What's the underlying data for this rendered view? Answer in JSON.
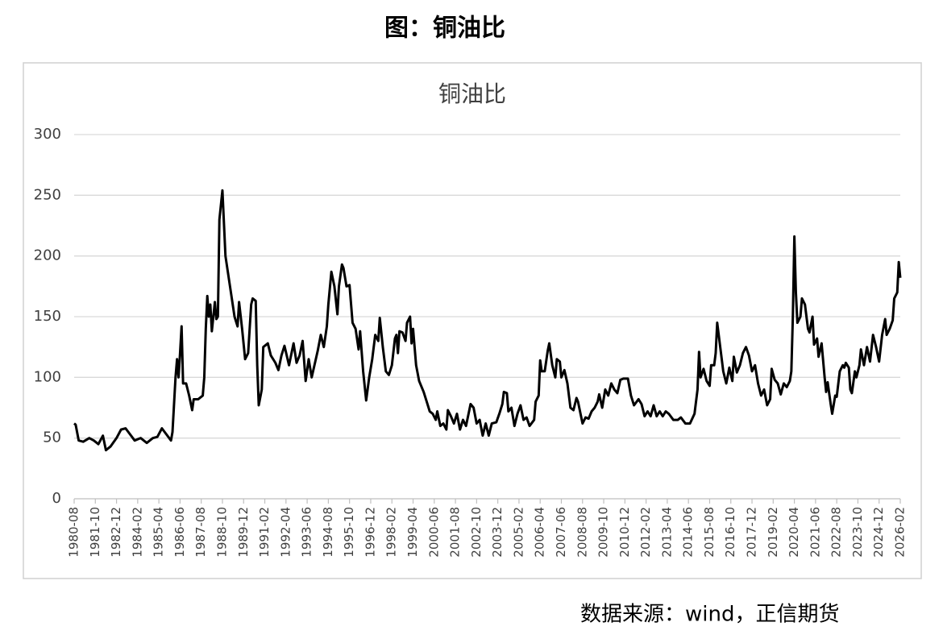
{
  "header": {
    "title": "图：铜油比"
  },
  "chart_data": {
    "type": "line",
    "title": "铜油比",
    "color": "#000000",
    "grid": true,
    "xlim": [
      "1980-08",
      "2026-02"
    ],
    "xticks": [
      "1980-08",
      "1981-10",
      "1982-12",
      "1984-02",
      "1985-04",
      "1986-06",
      "1987-08",
      "1988-10",
      "1989-12",
      "1991-02",
      "1992-04",
      "1993-06",
      "1994-08",
      "1995-10",
      "1996-12",
      "1998-02",
      "1999-04",
      "2000-06",
      "2001-08",
      "2002-10",
      "2003-12",
      "2005-02",
      "2006-04",
      "2007-06",
      "2008-08",
      "2009-10",
      "2010-12",
      "2012-02",
      "2013-04",
      "2014-06",
      "2015-08",
      "2016-10",
      "2017-12",
      "2019-02",
      "2020-04",
      "2021-06",
      "2022-08",
      "2023-10",
      "2024-12",
      "2026-02"
    ],
    "ylim": [
      0,
      300
    ],
    "yticks": [
      0,
      50,
      100,
      150,
      200,
      250,
      300
    ],
    "x": [
      "1980-08",
      "1980-09",
      "1980-11",
      "1981-02",
      "1981-06",
      "1981-09",
      "1981-12",
      "1982-03",
      "1982-05",
      "1982-08",
      "1982-12",
      "1983-03",
      "1983-06",
      "1983-09",
      "1983-12",
      "1984-04",
      "1984-08",
      "1984-12",
      "1985-03",
      "1985-06",
      "1985-09",
      "1985-12",
      "1986-01",
      "1986-03",
      "1986-04",
      "1986-05",
      "1986-06",
      "1986-07",
      "1986-08",
      "1986-10",
      "1986-12",
      "1987-02",
      "1987-03",
      "1987-06",
      "1987-09",
      "1987-10",
      "1987-11",
      "1987-12",
      "1988-01",
      "1988-02",
      "1988-03",
      "1988-05",
      "1988-06",
      "1988-07",
      "1988-08",
      "1988-10",
      "1988-12",
      "1989-03",
      "1989-06",
      "1989-08",
      "1989-09",
      "1989-11",
      "1990-01",
      "1990-03",
      "1990-05",
      "1990-06",
      "1990-08",
      "1990-09",
      "1990-10",
      "1990-12",
      "1991-01",
      "1991-04",
      "1991-06",
      "1991-09",
      "1991-11",
      "1992-01",
      "1992-03",
      "1992-06",
      "1992-09",
      "1992-11",
      "1993-01",
      "1993-03",
      "1993-05",
      "1993-07",
      "1993-09",
      "1994-01",
      "1994-03",
      "1994-05",
      "1994-07",
      "1994-08",
      "1994-10",
      "1994-12",
      "1995-02",
      "1995-03",
      "1995-05",
      "1995-06",
      "1995-08",
      "1995-10",
      "1995-12",
      "1996-02",
      "1996-04",
      "1996-05",
      "1996-07",
      "1996-09",
      "1996-11",
      "1997-01",
      "1997-03",
      "1997-05",
      "1997-06",
      "1997-08",
      "1997-10",
      "1997-12",
      "1998-02",
      "1998-04",
      "1998-05",
      "1998-06",
      "1998-07",
      "1998-09",
      "1998-11",
      "1998-12",
      "1999-02",
      "1999-03",
      "1999-04",
      "1999-06",
      "1999-08",
      "1999-11",
      "2000-01",
      "2000-03",
      "2000-05",
      "2000-07",
      "2000-08",
      "2000-10",
      "2000-12",
      "2001-02",
      "2001-03",
      "2001-05",
      "2001-07",
      "2001-09",
      "2001-11",
      "2002-01",
      "2002-03",
      "2002-06",
      "2002-08",
      "2002-10",
      "2002-12",
      "2003-02",
      "2003-04",
      "2003-06",
      "2003-08",
      "2003-11",
      "2004-01",
      "2004-03",
      "2004-04",
      "2004-06",
      "2004-07",
      "2004-09",
      "2004-11",
      "2005-01",
      "2005-03",
      "2005-05",
      "2005-07",
      "2005-09",
      "2005-12",
      "2006-01",
      "2006-03",
      "2006-04",
      "2006-05",
      "2006-07",
      "2006-09",
      "2006-10",
      "2006-12",
      "2007-02",
      "2007-03",
      "2007-05",
      "2007-06",
      "2007-08",
      "2007-10",
      "2007-12",
      "2008-02",
      "2008-04",
      "2008-05",
      "2008-08",
      "2008-10",
      "2008-12",
      "2009-02",
      "2009-04",
      "2009-06",
      "2009-07",
      "2009-09",
      "2009-11",
      "2010-01",
      "2010-03",
      "2010-05",
      "2010-07",
      "2010-09",
      "2010-11",
      "2011-02",
      "2011-04",
      "2011-06",
      "2011-09",
      "2011-11",
      "2012-01",
      "2012-03",
      "2012-05",
      "2012-07",
      "2012-09",
      "2012-11",
      "2013-01",
      "2013-03",
      "2013-05",
      "2013-08",
      "2013-11",
      "2014-01",
      "2014-04",
      "2014-07",
      "2014-10",
      "2014-12",
      "2015-01",
      "2015-02",
      "2015-04",
      "2015-06",
      "2015-08",
      "2015-09",
      "2015-11",
      "2015-12",
      "2016-01",
      "2016-03",
      "2016-05",
      "2016-07",
      "2016-09",
      "2016-11",
      "2016-12",
      "2017-02",
      "2017-04",
      "2017-06",
      "2017-08",
      "2017-10",
      "2017-12",
      "2018-02",
      "2018-04",
      "2018-06",
      "2018-08",
      "2018-10",
      "2018-12",
      "2019-01",
      "2019-03",
      "2019-05",
      "2019-07",
      "2019-09",
      "2019-11",
      "2020-01",
      "2020-02",
      "2020-03",
      "2020-04",
      "2020-05",
      "2020-06",
      "2020-08",
      "2020-09",
      "2020-11",
      "2021-01",
      "2021-02",
      "2021-04",
      "2021-05",
      "2021-07",
      "2021-08",
      "2021-10",
      "2021-12",
      "2022-01",
      "2022-02",
      "2022-04",
      "2022-05",
      "2022-07",
      "2022-08",
      "2022-10",
      "2022-12",
      "2023-01",
      "2023-02",
      "2023-04",
      "2023-05",
      "2023-06",
      "2023-08",
      "2023-09",
      "2023-11",
      "2023-12",
      "2024-02",
      "2024-04",
      "2024-06",
      "2024-08",
      "2024-10",
      "2024-12",
      "2025-02",
      "2025-04",
      "2025-05",
      "2025-07",
      "2025-09",
      "2025-10",
      "2025-12",
      "2026-01",
      "2026-02"
    ],
    "values": [
      62,
      61,
      48,
      47,
      50,
      48,
      45,
      52,
      40,
      43,
      50,
      57,
      58,
      53,
      48,
      50,
      46,
      50,
      51,
      58,
      53,
      48,
      55,
      100,
      115,
      100,
      120,
      142,
      95,
      95,
      85,
      73,
      82,
      82,
      85,
      100,
      140,
      167,
      150,
      160,
      138,
      162,
      148,
      150,
      230,
      254,
      200,
      175,
      150,
      142,
      162,
      140,
      115,
      120,
      160,
      165,
      163,
      110,
      77,
      90,
      125,
      128,
      118,
      112,
      106,
      118,
      126,
      110,
      128,
      112,
      118,
      130,
      97,
      115,
      100,
      122,
      135,
      125,
      142,
      160,
      187,
      175,
      152,
      175,
      193,
      190,
      175,
      176,
      145,
      140,
      123,
      138,
      105,
      81,
      100,
      115,
      135,
      130,
      149,
      125,
      105,
      102,
      110,
      132,
      135,
      120,
      138,
      137,
      130,
      145,
      150,
      128,
      140,
      110,
      97,
      88,
      80,
      72,
      70,
      65,
      72,
      60,
      62,
      57,
      73,
      68,
      62,
      70,
      57,
      65,
      60,
      78,
      75,
      62,
      65,
      52,
      62,
      52,
      62,
      63,
      70,
      78,
      88,
      87,
      72,
      75,
      60,
      70,
      77,
      65,
      67,
      60,
      65,
      80,
      85,
      114,
      105,
      105,
      122,
      128,
      110,
      100,
      115,
      113,
      100,
      106,
      95,
      75,
      73,
      83,
      80,
      62,
      67,
      66,
      72,
      75,
      80,
      86,
      75,
      90,
      85,
      95,
      90,
      87,
      98,
      99,
      99,
      85,
      77,
      82,
      78,
      68,
      72,
      68,
      77,
      68,
      72,
      68,
      72,
      70,
      65,
      65,
      67,
      62,
      62,
      70,
      90,
      121,
      100,
      107,
      97,
      93,
      110,
      110,
      120,
      145,
      125,
      105,
      95,
      108,
      97,
      117,
      104,
      110,
      120,
      125,
      118,
      105,
      110,
      95,
      85,
      90,
      77,
      82,
      107,
      98,
      95,
      86,
      95,
      92,
      97,
      105,
      150,
      216,
      170,
      145,
      150,
      165,
      160,
      140,
      137,
      150,
      127,
      132,
      117,
      128,
      100,
      88,
      96,
      78,
      70,
      85,
      84,
      105,
      110,
      108,
      112,
      108,
      90,
      87,
      105,
      100,
      110,
      123,
      110,
      125,
      113,
      135,
      125,
      113,
      135,
      148,
      135,
      140,
      147,
      165,
      170,
      195,
      182
    ]
  },
  "footer": {
    "source": "数据来源：wind，正信期货"
  }
}
